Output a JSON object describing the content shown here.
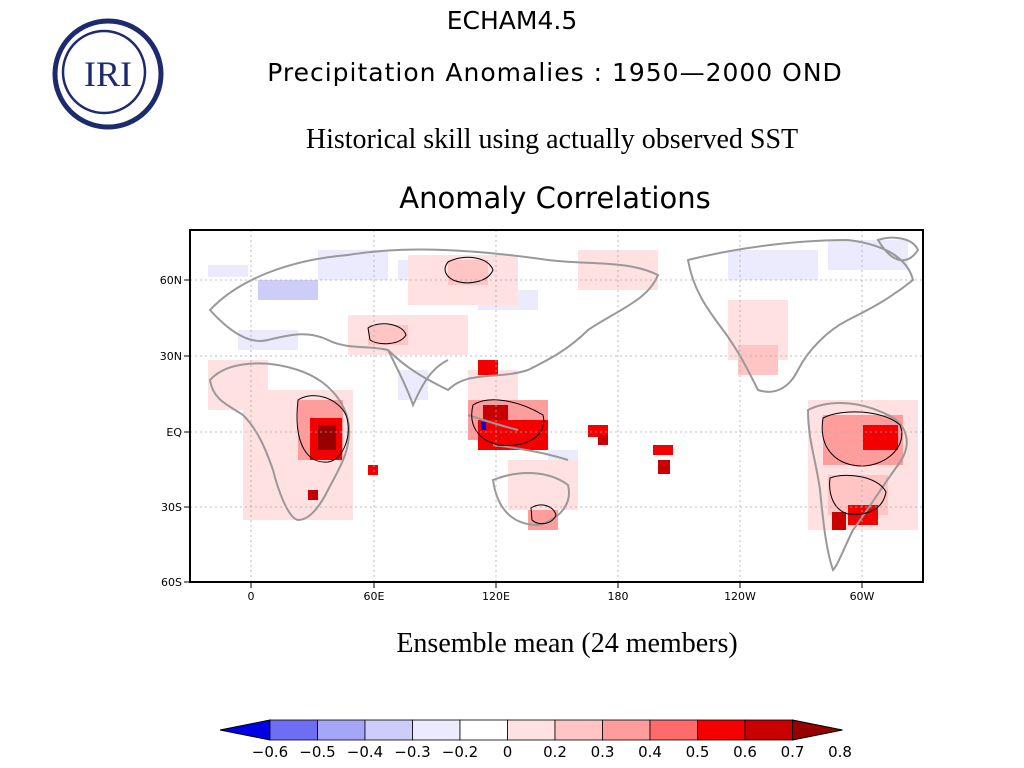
{
  "header": {
    "model": "ECHAM4.5",
    "subtitle": "Precipitation Anomalies : 1950—2000 OND",
    "description": "Historical skill using actually observed SST",
    "plot_title": "Anomaly Correlations",
    "footer": "Ensemble mean (24 members)"
  },
  "logo": {
    "text": "IRI",
    "color": "#1e2a6e"
  },
  "map_axes": {
    "y_ticks": [
      "60N",
      "30N",
      "EQ",
      "30S",
      "60S"
    ],
    "x_ticks": [
      "0",
      "60E",
      "120E",
      "180",
      "120W",
      "60W"
    ]
  },
  "colorbar": {
    "labels": [
      "−0.6",
      "−0.5",
      "−0.4",
      "−0.3",
      "−0.2",
      "0",
      "0.2",
      "0.3",
      "0.4",
      "0.5",
      "0.6",
      "0.7",
      "0.8"
    ],
    "colors": [
      "#0000e6",
      "#6e6ef4",
      "#a6a6f8",
      "#cdcdfa",
      "#ebebfd",
      "#ffffff",
      "#ffe1e1",
      "#ffc4c4",
      "#ff9c9c",
      "#ff6a6a",
      "#f50000",
      "#c80000",
      "#960000"
    ]
  }
}
